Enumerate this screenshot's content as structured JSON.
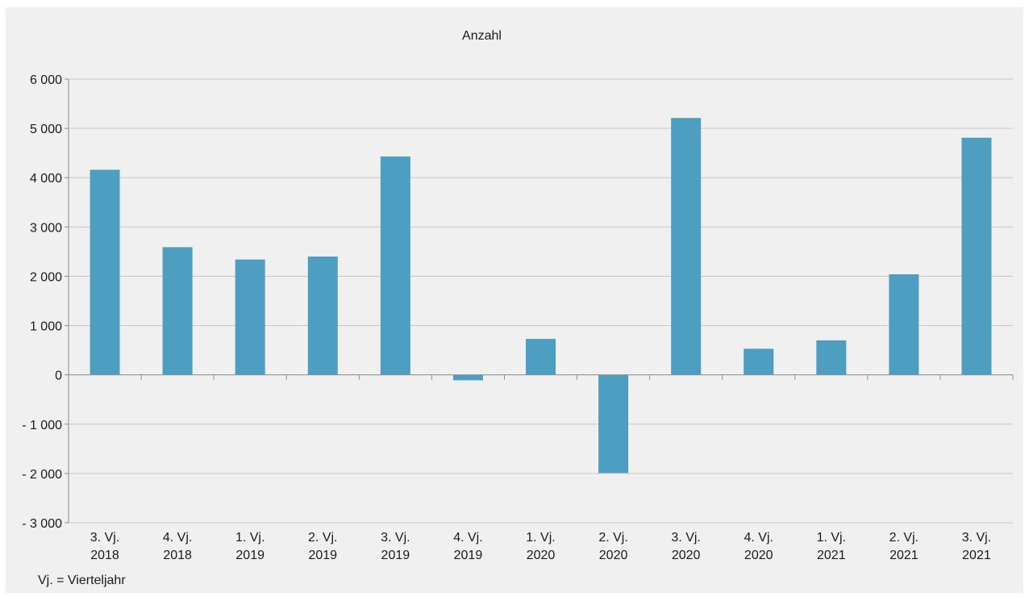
{
  "chart_data": {
    "type": "bar",
    "title": "Anzahl",
    "xlabel": "",
    "ylabel": "",
    "ylim": [
      -3000,
      6000
    ],
    "yticks": [
      {
        "value": 6000,
        "label": "6 000"
      },
      {
        "value": 5000,
        "label": "5 000"
      },
      {
        "value": 4000,
        "label": "4 000"
      },
      {
        "value": 3000,
        "label": "3 000"
      },
      {
        "value": 2000,
        "label": "2 000"
      },
      {
        "value": 1000,
        "label": "1 000"
      },
      {
        "value": 0,
        "label": "0"
      },
      {
        "value": -1000,
        "label": "- 1 000"
      },
      {
        "value": -2000,
        "label": "- 2 000"
      },
      {
        "value": -3000,
        "label": "- 3 000"
      }
    ],
    "categories": [
      [
        "3. Vj.",
        "2018"
      ],
      [
        "4. Vj.",
        "2018"
      ],
      [
        "1. Vj.",
        "2019"
      ],
      [
        "2. Vj.",
        "2019"
      ],
      [
        "3. Vj.",
        "2019"
      ],
      [
        "4. Vj.",
        "2019"
      ],
      [
        "1. Vj.",
        "2020"
      ],
      [
        "2. Vj.",
        "2020"
      ],
      [
        "3. Vj.",
        "2020"
      ],
      [
        "4. Vj.",
        "2020"
      ],
      [
        "1. Vj.",
        "2021"
      ],
      [
        "2. Vj.",
        "2021"
      ],
      [
        "3. Vj.",
        "2021"
      ]
    ],
    "values": [
      4160,
      2590,
      2340,
      2400,
      4430,
      -110,
      730,
      -1990,
      5210,
      530,
      700,
      2040,
      4810
    ],
    "grid": true,
    "legend": "none",
    "bar_color": "#4e9ec1",
    "grid_color": "#c8c8c8",
    "axis_color": "#8c8c8c"
  },
  "footnote": "Vj. = Vierteljahr"
}
